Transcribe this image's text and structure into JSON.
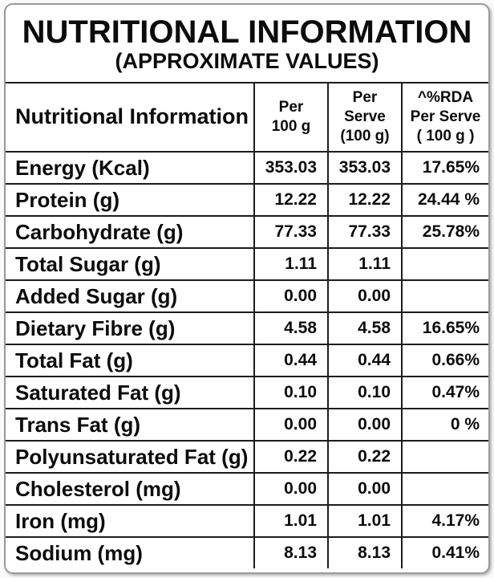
{
  "title": "NUTRITIONAL INFORMATION",
  "subtitle": "(APPROXIMATE VALUES)",
  "table": {
    "header": {
      "label": "Nutritional Information",
      "per100g": [
        "Per",
        "100 g"
      ],
      "perServe": [
        "Per",
        "Serve",
        "(100 g)"
      ],
      "rda": [
        "^%RDA",
        "Per Serve",
        "( 100 g )"
      ]
    },
    "rows": [
      {
        "label": "Energy (Kcal)",
        "per100g": "353.03",
        "perServe": "353.03",
        "rda": "17.65%"
      },
      {
        "label": "Protein (g)",
        "per100g": "12.22",
        "perServe": "12.22",
        "rda": "24.44 %"
      },
      {
        "label": "Carbohydrate (g)",
        "per100g": "77.33",
        "perServe": "77.33",
        "rda": "25.78%"
      },
      {
        "label": "Total Sugar (g)",
        "per100g": "1.11",
        "perServe": "1.11",
        "rda": ""
      },
      {
        "label": "Added Sugar (g)",
        "per100g": "0.00",
        "perServe": "0.00",
        "rda": ""
      },
      {
        "label": "Dietary Fibre (g)",
        "per100g": "4.58",
        "perServe": "4.58",
        "rda": "16.65%"
      },
      {
        "label": "Total Fat (g)",
        "per100g": "0.44",
        "perServe": "0.44",
        "rda": "0.66%"
      },
      {
        "label": "Saturated Fat (g)",
        "per100g": "0.10",
        "perServe": "0.10",
        "rda": "0.47%"
      },
      {
        "label": "Trans Fat (g)",
        "per100g": "0.00",
        "perServe": "0.00",
        "rda": "0 %"
      },
      {
        "label": "Polyunsaturated Fat (g)",
        "per100g": "0.22",
        "perServe": "0.22",
        "rda": ""
      },
      {
        "label": "Cholesterol (mg)",
        "per100g": "0.00",
        "perServe": "0.00",
        "rda": ""
      },
      {
        "label": "Iron (mg)",
        "per100g": "1.01",
        "perServe": "1.01",
        "rda": "4.17%"
      },
      {
        "label": "Sodium (mg)",
        "per100g": "8.13",
        "perServe": "8.13",
        "rda": "0.41%"
      }
    ]
  },
  "colors": {
    "text": "#0c0c0c",
    "grid_line": "#1c1c1c",
    "card_border": "#9a9a9a",
    "background": "#ffffff"
  }
}
